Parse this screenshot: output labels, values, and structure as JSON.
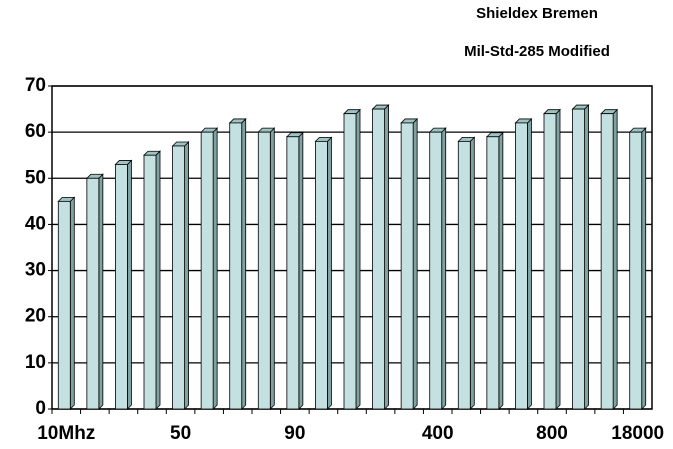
{
  "chart_data": {
    "type": "bar",
    "title": "Shieldex  Bremen",
    "subtitle": "Mil-Std-285 Modified",
    "categories": [
      "10Mhz",
      null,
      null,
      null,
      "50",
      null,
      null,
      null,
      "90",
      null,
      null,
      null,
      null,
      "400",
      null,
      null,
      null,
      "800",
      null,
      null,
      "18000"
    ],
    "values": [
      45,
      50,
      53,
      55,
      57,
      60,
      62,
      60,
      59,
      58,
      64,
      65,
      62,
      60,
      58,
      59,
      62,
      64,
      65,
      64,
      60
    ],
    "color": "#c4e0e0",
    "ylim": [
      0,
      70
    ],
    "yticks": [
      0,
      10,
      20,
      30,
      40,
      50,
      60,
      70
    ],
    "grid": true
  }
}
